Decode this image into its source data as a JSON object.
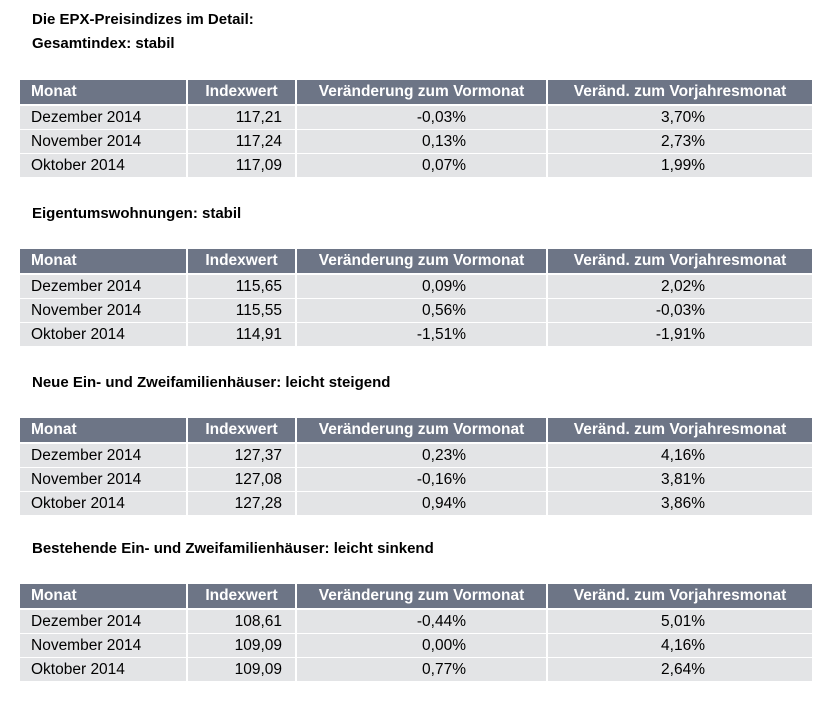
{
  "document": {
    "title": "Die EPX-Preisindizes im Detail:",
    "columns": {
      "month": "Monat",
      "index": "Indexwert",
      "mom": "Veränderung zum Vormonat",
      "yoy": "Veränd. zum Vorjahresmonat"
    },
    "sections": [
      {
        "heading": "Gesamtindex: stabil",
        "rows": [
          {
            "month": "Dezember 2014",
            "index": "117,21",
            "mom": "-0,03%",
            "yoy": "3,70%"
          },
          {
            "month": "November 2014",
            "index": "117,24",
            "mom": "0,13%",
            "yoy": "2,73%"
          },
          {
            "month": "Oktober 2014",
            "index": "117,09",
            "mom": "0,07%",
            "yoy": "1,99%"
          }
        ]
      },
      {
        "heading": "Eigentumswohnungen: stabil",
        "rows": [
          {
            "month": "Dezember 2014",
            "index": "115,65",
            "mom": "0,09%",
            "yoy": "2,02%"
          },
          {
            "month": "November 2014",
            "index": "115,55",
            "mom": "0,56%",
            "yoy": "-0,03%"
          },
          {
            "month": "Oktober 2014",
            "index": "114,91",
            "mom": "-1,51%",
            "yoy": "-1,91%"
          }
        ]
      },
      {
        "heading": "Neue Ein- und Zweifamilienhäuser: leicht steigend",
        "rows": [
          {
            "month": "Dezember 2014",
            "index": "127,37",
            "mom": "0,23%",
            "yoy": "4,16%"
          },
          {
            "month": "November 2014",
            "index": "127,08",
            "mom": "-0,16%",
            "yoy": "3,81%"
          },
          {
            "month": "Oktober 2014",
            "index": "127,28",
            "mom": "0,94%",
            "yoy": "3,86%"
          }
        ]
      },
      {
        "heading": "Bestehende Ein- und Zweifamilienhäuser: leicht sinkend",
        "rows": [
          {
            "month": "Dezember 2014",
            "index": "108,61",
            "mom": "-0,44%",
            "yoy": "5,01%"
          },
          {
            "month": "November 2014",
            "index": "109,09",
            "mom": "0,00%",
            "yoy": "4,16%"
          },
          {
            "month": "Oktober 2014",
            "index": "109,09",
            "mom": "0,77%",
            "yoy": "2,64%"
          }
        ]
      }
    ]
  }
}
